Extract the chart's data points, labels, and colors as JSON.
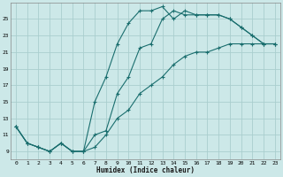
{
  "title": "",
  "xlabel": "Humidex (Indice chaleur)",
  "bg_color": "#cce8e8",
  "grid_color": "#aacece",
  "line_color": "#1a6e6e",
  "xlim": [
    -0.5,
    23.5
  ],
  "ylim": [
    8.0,
    27.0
  ],
  "xticks": [
    0,
    1,
    2,
    3,
    4,
    5,
    6,
    7,
    8,
    9,
    10,
    11,
    12,
    13,
    14,
    15,
    16,
    17,
    18,
    19,
    20,
    21,
    22,
    23
  ],
  "yticks": [
    9,
    11,
    13,
    15,
    17,
    19,
    21,
    23,
    25
  ],
  "curve1_x": [
    0,
    1,
    2,
    3,
    4,
    5,
    6,
    7,
    8,
    9,
    10,
    11,
    12,
    13,
    14,
    15,
    16,
    17,
    18,
    19,
    20,
    21,
    22,
    23
  ],
  "curve1_y": [
    12,
    10,
    9.5,
    9,
    10,
    9,
    9,
    11,
    11.5,
    16,
    18,
    21.5,
    22,
    25,
    26,
    25.5,
    25.5,
    25.5,
    25.5,
    25,
    24,
    23,
    22,
    22
  ],
  "curve2_x": [
    0,
    1,
    2,
    3,
    4,
    5,
    6,
    7,
    8,
    9,
    10,
    11,
    12,
    13,
    14,
    15,
    16,
    17,
    18,
    19,
    20,
    21,
    22,
    23
  ],
  "curve2_y": [
    12,
    10,
    9.5,
    9,
    10,
    9,
    9,
    15,
    18,
    22,
    24.5,
    26,
    26,
    26.5,
    25,
    26,
    25.5,
    25.5,
    25.5,
    25,
    24,
    23,
    22,
    22
  ],
  "curve3_x": [
    0,
    1,
    2,
    3,
    4,
    5,
    6,
    7,
    8,
    9,
    10,
    11,
    12,
    13,
    14,
    15,
    16,
    17,
    18,
    19,
    20,
    21,
    22,
    23
  ],
  "curve3_y": [
    12,
    10,
    9.5,
    9,
    10,
    9,
    9,
    9.5,
    11,
    13,
    14,
    16,
    17,
    18,
    19.5,
    20.5,
    21,
    21,
    21.5,
    22,
    22,
    22,
    22,
    22
  ]
}
